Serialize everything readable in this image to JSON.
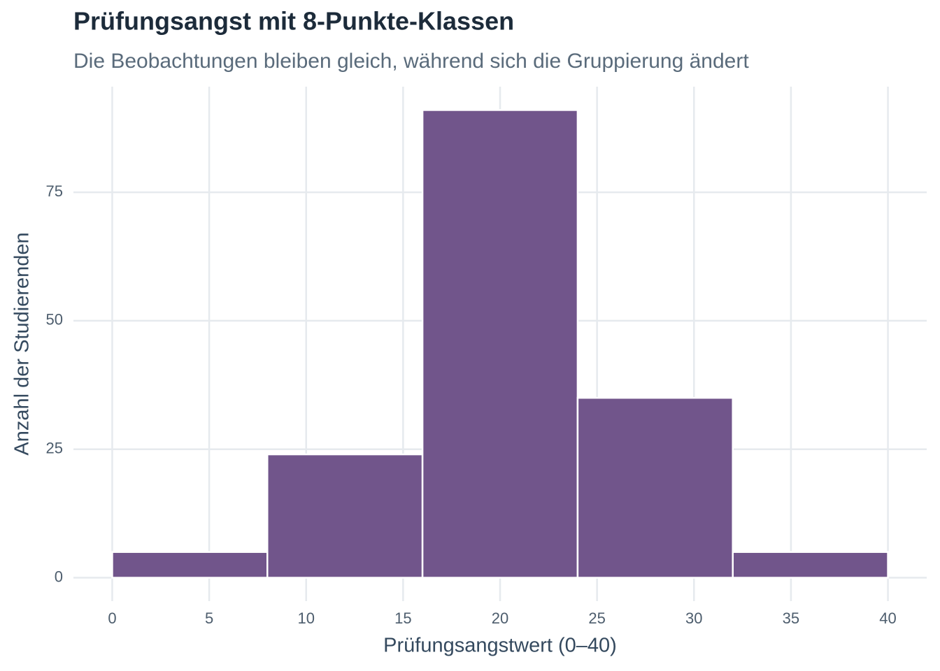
{
  "chart_data": {
    "type": "histogram",
    "title": "Prüfungsangst mit 8-Punkte-Klassen",
    "subtitle": "Die Beobachtungen bleiben gleich, während sich die Gruppierung ändert",
    "x_label": "Prüfungsangstwert (0–40)",
    "y_label": "Anzahl der Studierenden",
    "bins": [
      0,
      8,
      16,
      24,
      32,
      40
    ],
    "values": [
      5,
      24,
      91,
      35,
      5
    ],
    "color": "#71558b",
    "xlim": [
      -2,
      42
    ],
    "xticks": [
      0,
      5,
      10,
      15,
      20,
      25,
      30,
      35,
      40
    ],
    "ylim": [
      -4.55,
      95.55
    ],
    "yticks": [
      0,
      25,
      50,
      75
    ],
    "grid": true
  }
}
